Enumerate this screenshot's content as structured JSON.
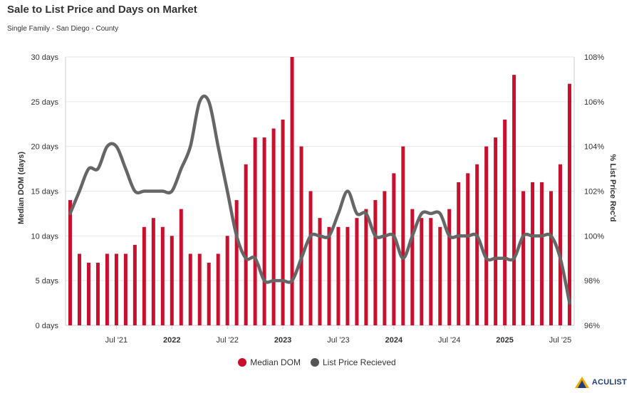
{
  "title": "Sale to List Price and Days on Market",
  "subtitle": "Single Family - San Diego - County",
  "colors": {
    "bar": "#c8102e",
    "line": "#666666",
    "grid": "#e6e6e6"
  },
  "logo_text": "ACULIST",
  "chart_data": {
    "type": "bar",
    "title": "Sale to List Price and Days on Market",
    "ylabel": "Median DOM (days)",
    "y2label": "% List Price Rec'd",
    "ylim": [
      0,
      30
    ],
    "y2lim": [
      96,
      108
    ],
    "yticks": [
      "0 days",
      "5 days",
      "10 days",
      "15 days",
      "20 days",
      "25 days",
      "30 days"
    ],
    "y2ticks": [
      "96%",
      "98%",
      "100%",
      "102%",
      "104%",
      "106%",
      "108%"
    ],
    "xticks": [
      {
        "index": 5,
        "label": "Jul '21",
        "bold": false
      },
      {
        "index": 11,
        "label": "2022",
        "bold": true
      },
      {
        "index": 17,
        "label": "Jul '22",
        "bold": false
      },
      {
        "index": 23,
        "label": "2023",
        "bold": true
      },
      {
        "index": 29,
        "label": "Jul '23",
        "bold": false
      },
      {
        "index": 35,
        "label": "2024",
        "bold": true
      },
      {
        "index": 41,
        "label": "Jul '24",
        "bold": false
      },
      {
        "index": 47,
        "label": "2025",
        "bold": true
      },
      {
        "index": 53,
        "label": "Jul '25",
        "bold": false
      }
    ],
    "series": [
      {
        "name": "Median DOM",
        "type": "bar",
        "axis": "left",
        "values": [
          14,
          8,
          7,
          7,
          8,
          8,
          8,
          9,
          11,
          12,
          11,
          10,
          13,
          8,
          8,
          7,
          8,
          10,
          14,
          18,
          21,
          21,
          22,
          23,
          30,
          20,
          15,
          12,
          11,
          11,
          11,
          12,
          13,
          14,
          15,
          17,
          20,
          13,
          12,
          12,
          11,
          13,
          16,
          17,
          18,
          20,
          21,
          23,
          28,
          15,
          16,
          16,
          15,
          18,
          27
        ]
      },
      {
        "name": "List Price Recieved",
        "type": "line",
        "axis": "right",
        "values": [
          101,
          102,
          103,
          103,
          104,
          104,
          103,
          102,
          102,
          102,
          102,
          102,
          103,
          104,
          106,
          106,
          104,
          102,
          100,
          99,
          99,
          98,
          98,
          98,
          98,
          99,
          100,
          100,
          100,
          101,
          102,
          101,
          101,
          100,
          100,
          100,
          99,
          100,
          101,
          101,
          101,
          100,
          100,
          100,
          100,
          99,
          99,
          99,
          99,
          100,
          100,
          100,
          100,
          99,
          97
        ]
      }
    ],
    "legend": "bottom-center"
  }
}
